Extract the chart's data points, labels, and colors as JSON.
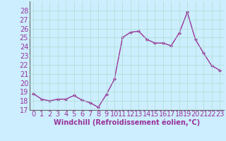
{
  "x": [
    0,
    1,
    2,
    3,
    4,
    5,
    6,
    7,
    8,
    9,
    10,
    11,
    12,
    13,
    14,
    15,
    16,
    17,
    18,
    19,
    20,
    21,
    22,
    23
  ],
  "y": [
    18.8,
    18.2,
    18.0,
    18.2,
    18.2,
    18.6,
    18.1,
    17.8,
    17.3,
    18.7,
    20.4,
    25.0,
    25.6,
    25.7,
    24.8,
    24.4,
    24.4,
    24.1,
    25.5,
    27.8,
    24.8,
    23.3,
    21.9,
    21.4
  ],
  "line_color": "#993399",
  "marker": "D",
  "marker_size": 2,
  "line_width": 1.0,
  "bg_color": "#cceeff",
  "grid_color": "#aaddcc",
  "xlabel": "Windchill (Refroidissement éolien,°C)",
  "xlabel_fontsize": 7,
  "tick_fontsize": 7,
  "ylim": [
    17,
    29
  ],
  "yticks": [
    17,
    18,
    19,
    20,
    21,
    22,
    23,
    24,
    25,
    26,
    27,
    28
  ],
  "xlim": [
    -0.5,
    23.5
  ],
  "xticks": [
    0,
    1,
    2,
    3,
    4,
    5,
    6,
    7,
    8,
    9,
    10,
    11,
    12,
    13,
    14,
    15,
    16,
    17,
    18,
    19,
    20,
    21,
    22,
    23
  ],
  "tick_color": "#993399",
  "label_color": "#993399"
}
